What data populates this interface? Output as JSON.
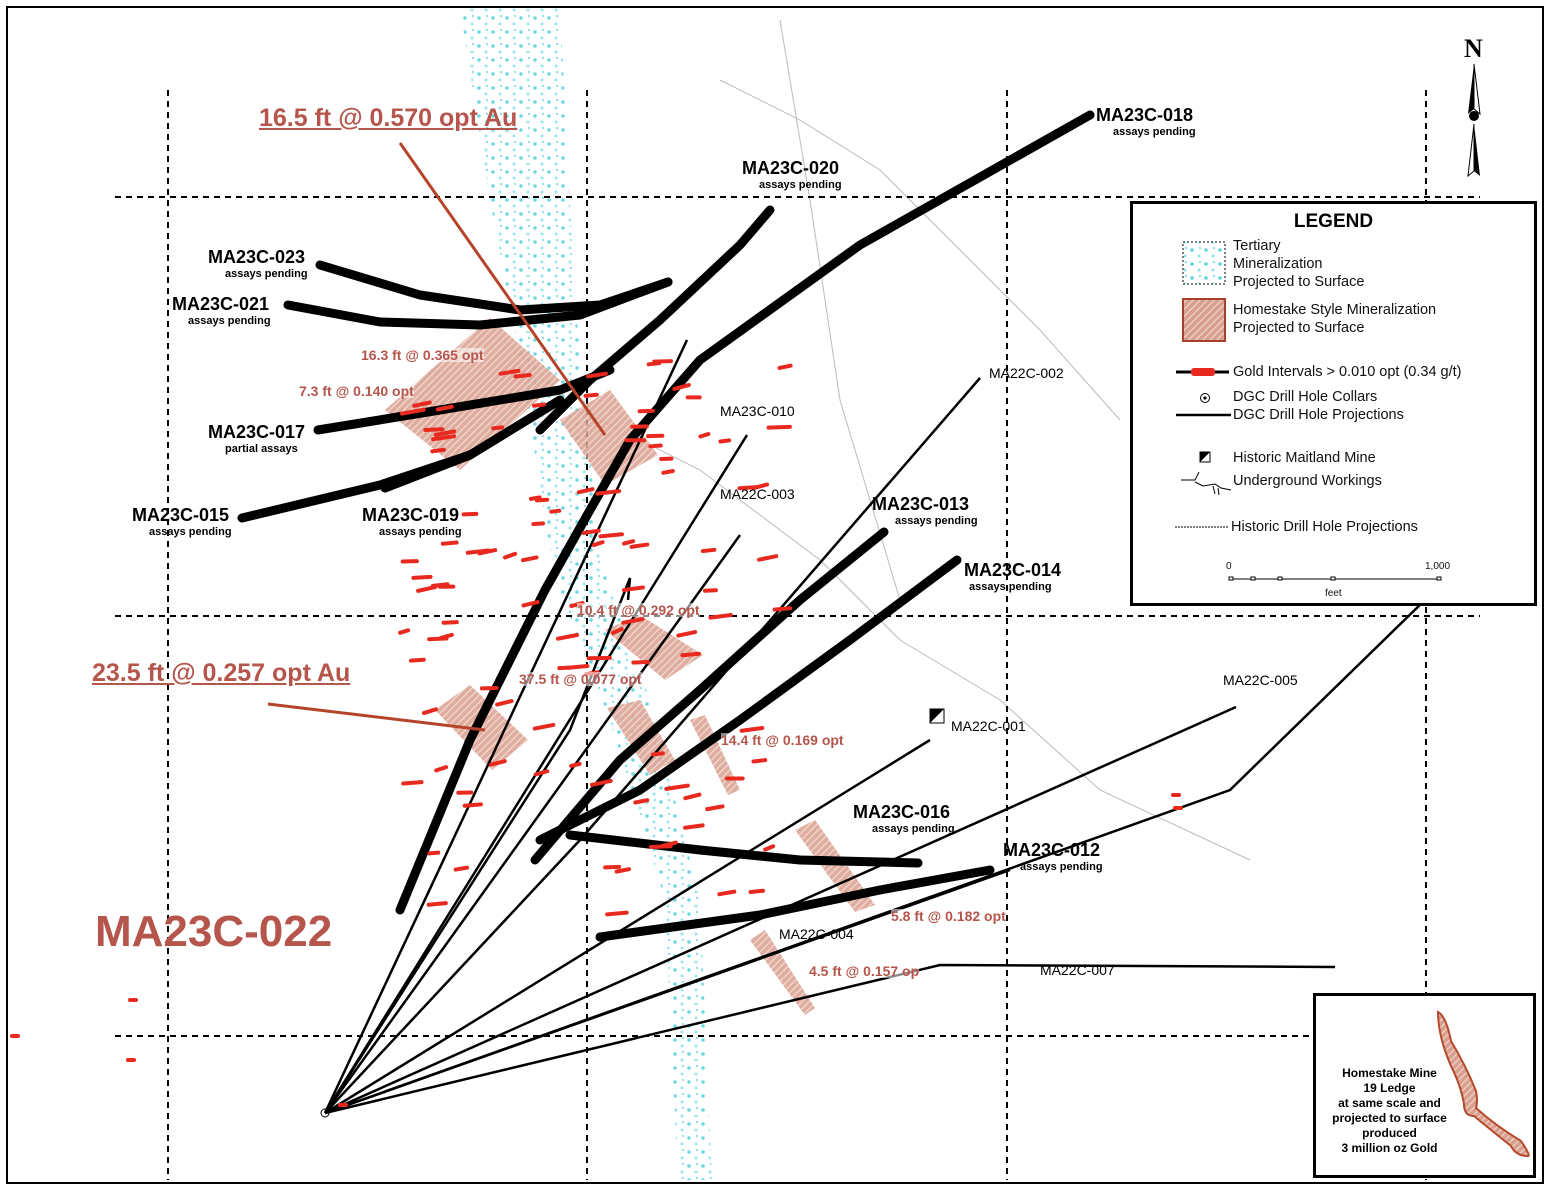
{
  "colors": {
    "hole": "#000000",
    "gold_interval": "#e8291f",
    "homestake": "#c9826c",
    "tertiary": "#5fd3e0",
    "label_red": "#b5554b",
    "grid": "#000000"
  },
  "north_label": "N",
  "headline_intercepts": [
    {
      "text": "16.5 ft @ 0.570 opt Au"
    },
    {
      "text": "23.5 ft @ 0.257 opt Au"
    }
  ],
  "featured_hole": "MA23C-022",
  "drill_holes_bold": [
    {
      "name": "MA23C-018",
      "status": "assays pending"
    },
    {
      "name": "MA23C-020",
      "status": "assays pending"
    },
    {
      "name": "MA23C-023",
      "status": "assays pending"
    },
    {
      "name": "MA23C-021",
      "status": "assays pending"
    },
    {
      "name": "MA23C-017",
      "status": "partial assays"
    },
    {
      "name": "MA23C-015",
      "status": "assays pending"
    },
    {
      "name": "MA23C-019",
      "status": "assays pending"
    },
    {
      "name": "MA23C-013",
      "status": "assays pending"
    },
    {
      "name": "MA23C-014",
      "status": "assays pending"
    },
    {
      "name": "MA23C-016",
      "status": "assays pending"
    },
    {
      "name": "MA23C-012",
      "status": "assays pending"
    }
  ],
  "drill_holes_thin": [
    "MA22C-002",
    "MA23C-010",
    "MA22C-003",
    "MA22C-005",
    "MA22C-001",
    "MA22C-004",
    "MA22C-007"
  ],
  "intercepts": [
    "16.3 ft @ 0.365 opt",
    "7.3 ft @ 0.140 opt",
    "10.4 ft @ 0.292 opt",
    "37.5 ft @ 0.077 opt",
    "14.4 ft @ 0.169 opt",
    "5.8 ft @ 0.182 opt",
    "4.5 ft @ 0.157 op"
  ],
  "legend": {
    "title": "LEGEND",
    "items": [
      {
        "icon": "tertiary-pattern",
        "label": "Tertiary\nMineralization\nProjected to Surface"
      },
      {
        "icon": "homestake-hatch",
        "label": "Homestake Style Mineralization\nProjected to Surface"
      },
      {
        "icon": "gold-interval-line",
        "label": "Gold Intervals > 0.010 opt (0.34 g/t)"
      },
      {
        "icon": "collar-circle",
        "label": "DGC Drill Hole Collars"
      },
      {
        "icon": "solid-line",
        "label": "DGC Drill Hole Projections"
      },
      {
        "icon": "mine-square",
        "label": "Historic Maitland Mine"
      },
      {
        "icon": "workings-line",
        "label": "Underground Workings"
      },
      {
        "icon": "dashed-line",
        "label": "Historic Drill Hole Projections"
      }
    ],
    "scale": {
      "min_label": "0",
      "max_label": "1,000",
      "unit": "feet"
    }
  },
  "inset": {
    "text": "Homestake Mine\n19 Ledge\nat same scale and\nprojected to surface\nproduced\n3 million oz Gold"
  }
}
